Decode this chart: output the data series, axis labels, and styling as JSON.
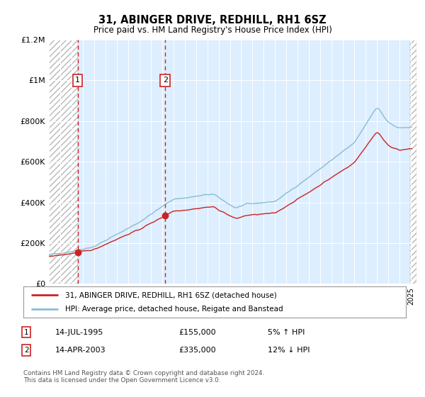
{
  "title": "31, ABINGER DRIVE, REDHILL, RH1 6SZ",
  "subtitle": "Price paid vs. HM Land Registry's House Price Index (HPI)",
  "legend_line1": "31, ABINGER DRIVE, REDHILL, RH1 6SZ (detached house)",
  "legend_line2": "HPI: Average price, detached house, Reigate and Banstead",
  "sale1_label": "1",
  "sale1_date": "14-JUL-1995",
  "sale1_price": "£155,000",
  "sale1_hpi": "5% ↑ HPI",
  "sale1_year": 1995.538,
  "sale1_value": 155000,
  "sale2_label": "2",
  "sale2_date": "14-APR-2003",
  "sale2_price": "£335,000",
  "sale2_hpi": "12% ↓ HPI",
  "sale2_year": 2003.286,
  "sale2_value": 335000,
  "ylim": [
    0,
    1200000
  ],
  "yticks": [
    0,
    200000,
    400000,
    600000,
    800000,
    1000000,
    1200000
  ],
  "ytick_labels": [
    "£0",
    "£200K",
    "£400K",
    "£600K",
    "£800K",
    "£1M",
    "£1.2M"
  ],
  "xmin": 1993.0,
  "xmax": 2025.5,
  "hpi_color": "#89bcd4",
  "price_color": "#cc2222",
  "bg_color": "#ddeeff",
  "hatch_bg": "#ffffff",
  "footnote": "Contains HM Land Registry data © Crown copyright and database right 2024.\nThis data is licensed under the Open Government Licence v3.0."
}
